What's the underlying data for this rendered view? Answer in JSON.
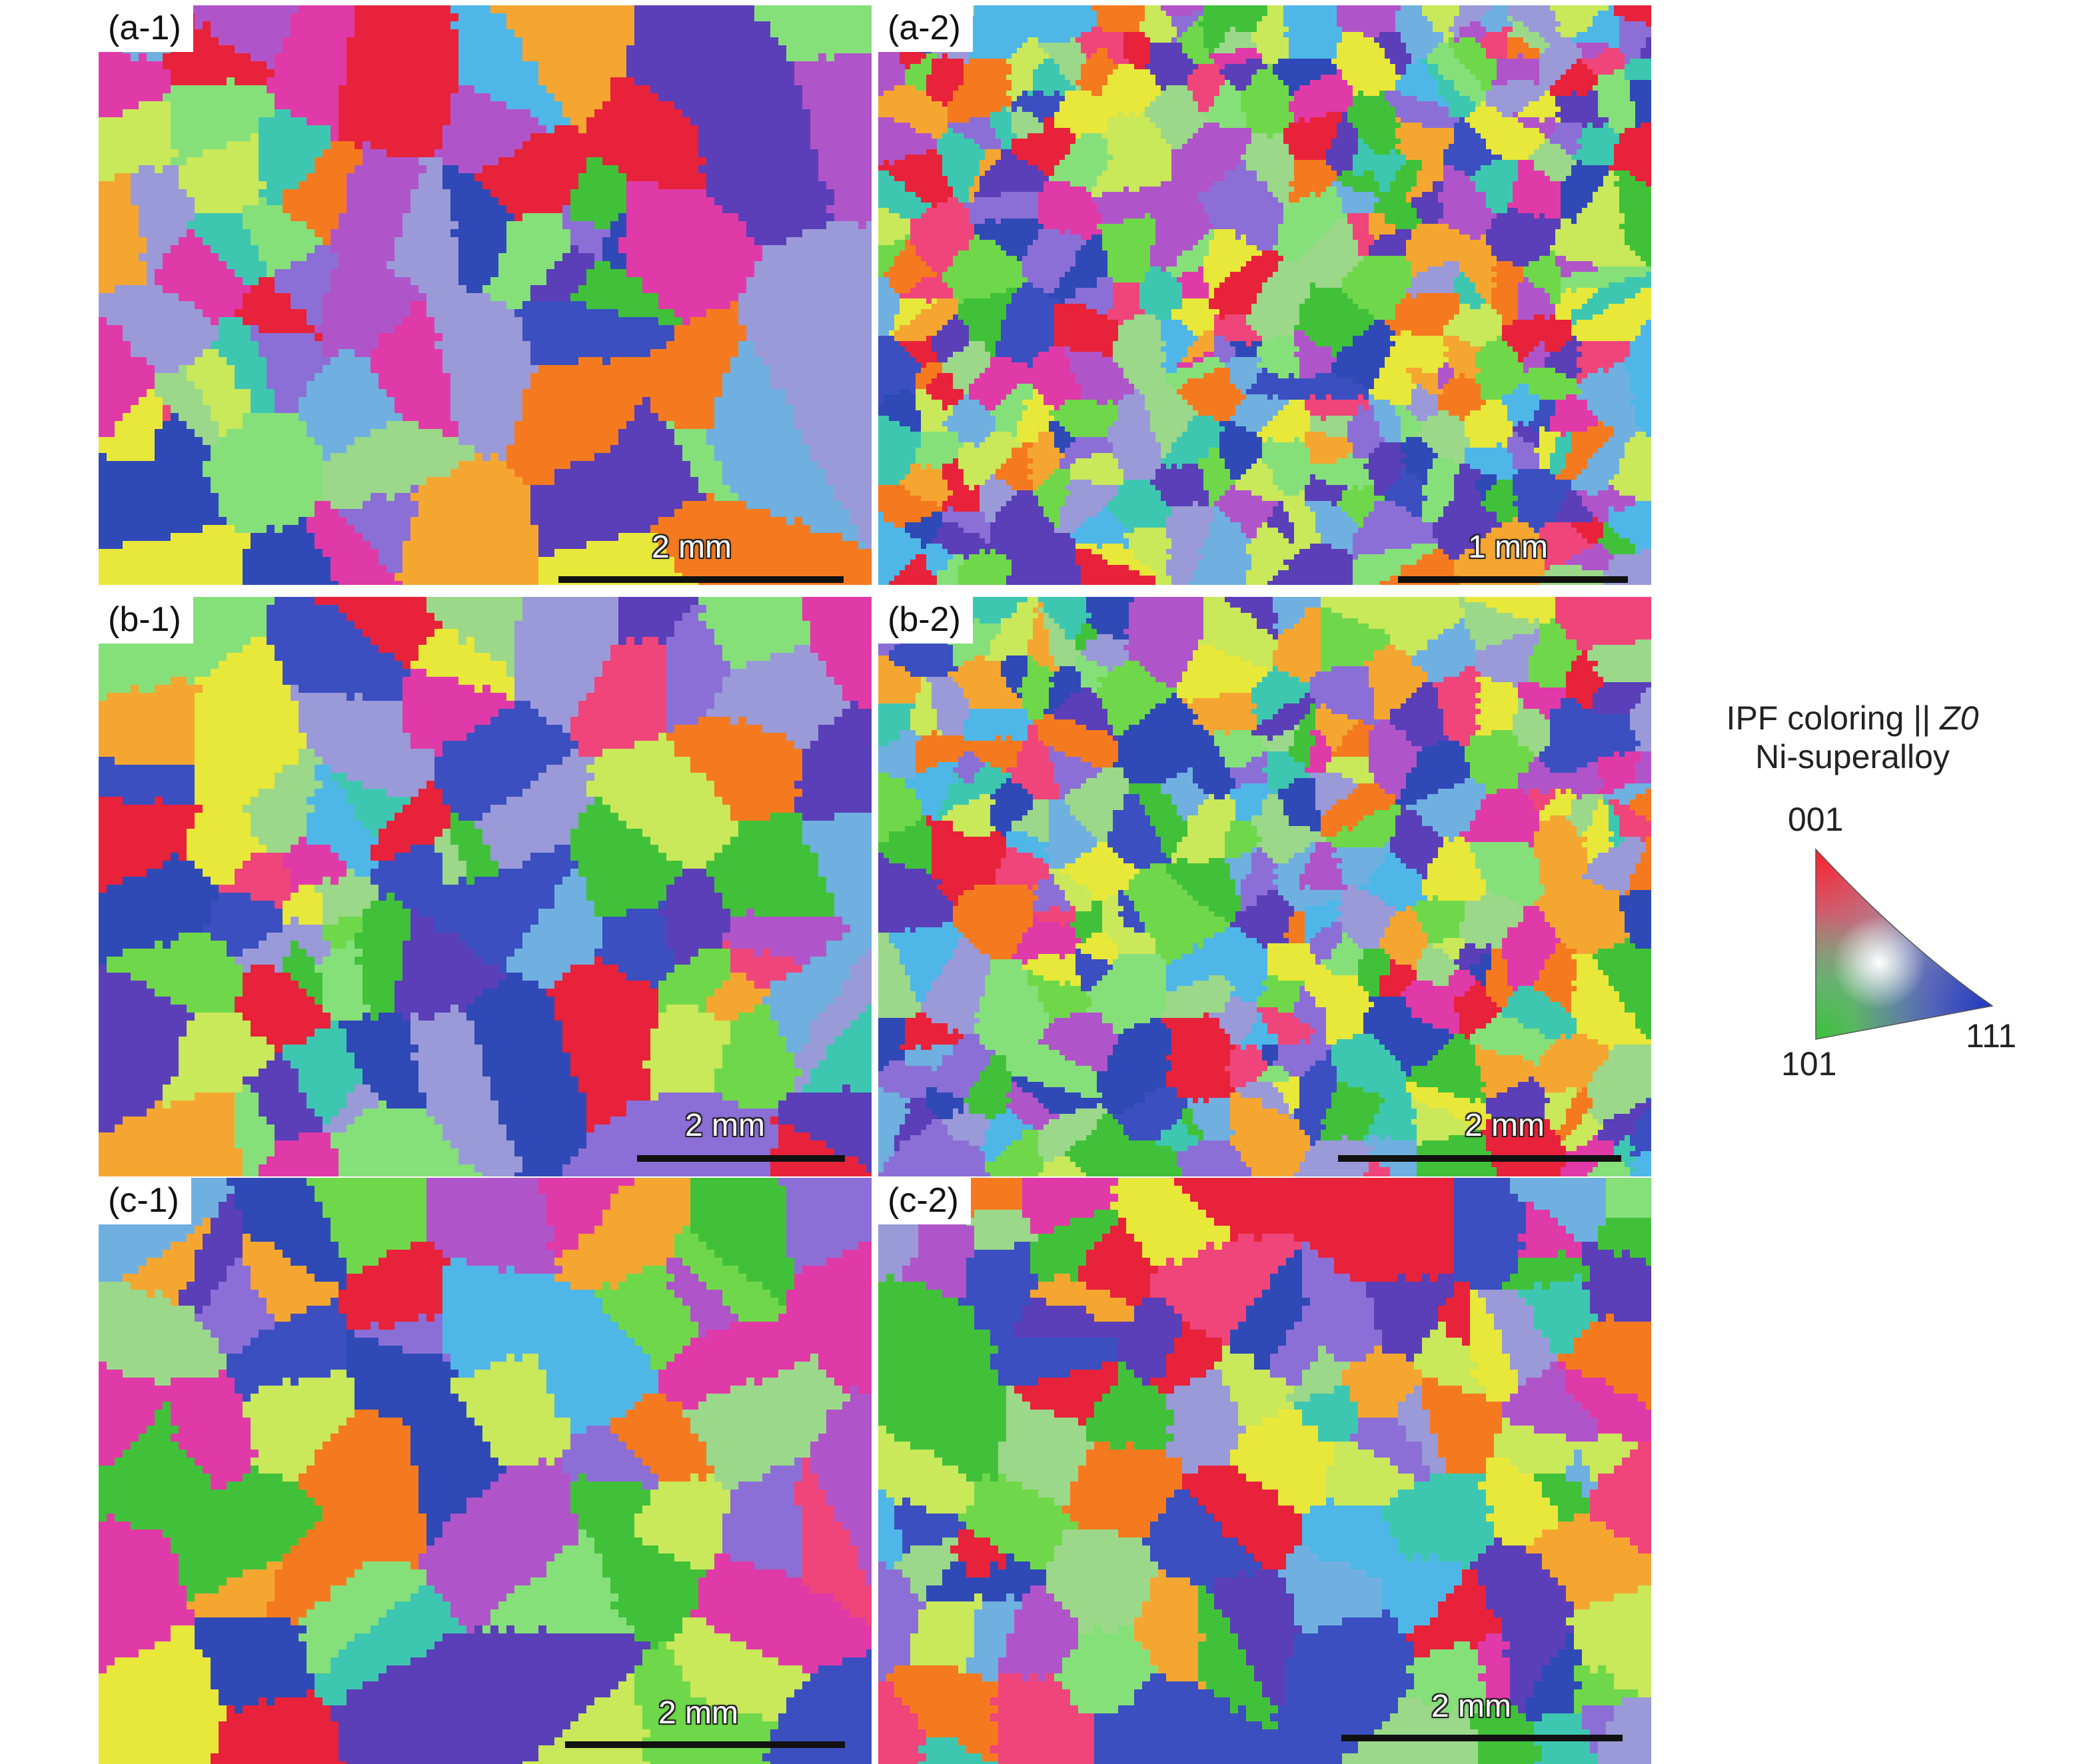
{
  "panels": [
    {
      "label": "(a-1)",
      "scale": "2 mm",
      "seed": 11,
      "cells": 70
    },
    {
      "label": "(a-2)",
      "scale": "1 mm",
      "seed": 23,
      "cells": 320
    },
    {
      "label": "(b-1)",
      "scale": "2 mm",
      "seed": 37,
      "cells": 80
    },
    {
      "label": "(b-2)",
      "scale": "2 mm",
      "seed": 41,
      "cells": 260
    },
    {
      "label": "(c-1)",
      "scale": "2 mm",
      "seed": 53,
      "cells": 60
    },
    {
      "label": "(c-2)",
      "scale": "2 mm",
      "seed": 67,
      "cells": 110
    }
  ],
  "legend": {
    "title_line1_prefix": "IPF coloring || ",
    "title_line1_axis": "Z0",
    "title_line2": "Ni-superalloy",
    "corner_001": "001",
    "corner_101": "101",
    "corner_111": "111"
  },
  "colors": {
    "grains": [
      "#5a3fb8",
      "#3b4fc0",
      "#2f49b7",
      "#41c13a",
      "#6fd84a",
      "#86e07a",
      "#9bd889",
      "#3ec7b0",
      "#4fb7e8",
      "#8c6fd6",
      "#b055c9",
      "#e03aa8",
      "#f0457a",
      "#e8223a",
      "#f57a1f",
      "#f5a631",
      "#e8e83a",
      "#c9e85a",
      "#9a9ad8",
      "#6fb0e0"
    ],
    "key_001": "#e8223a",
    "key_101": "#41c13a",
    "key_111": "#2f49b7"
  }
}
